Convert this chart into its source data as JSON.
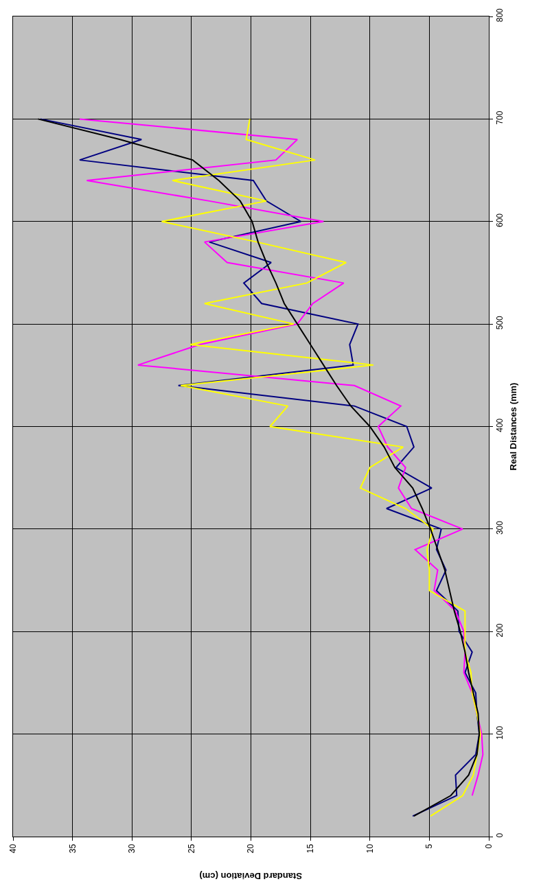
{
  "chart_data": {
    "type": "line",
    "xlabel": "Standard Deviation (cm)",
    "ylabel": "Real Distances (mm)",
    "series": [
      {
        "color": "#000080",
        "x": [
          6.4,
          2.7,
          2.8,
          1.1,
          0.8,
          1.0,
          1.1,
          2.0,
          1.4,
          2.5,
          2.6,
          4.4,
          3.6,
          4.4,
          4.0,
          8.6,
          4.8,
          7.8,
          6.3,
          6.9,
          11.3,
          26.1,
          11.4,
          11.7,
          11.0,
          19.1,
          20.6,
          18.3,
          23.5,
          15.8,
          18.7,
          19.8,
          34.4,
          29.2,
          37.7
        ],
        "values": [
          20,
          40,
          60,
          80,
          100,
          120,
          140,
          160,
          180,
          200,
          220,
          240,
          260,
          280,
          300,
          320,
          340,
          360,
          380,
          400,
          420,
          440,
          460,
          480,
          500,
          520,
          540,
          560,
          580,
          600,
          620,
          640,
          660,
          680,
          700
        ]
      },
      {
        "color": "#ff00ff",
        "x": [
          1.4,
          0.9,
          0.5,
          0.6,
          1.0,
          1.4,
          2.1,
          2.0,
          2.1,
          2.8,
          4.6,
          4.3,
          6.2,
          2.2,
          6.5,
          7.6,
          7.0,
          8.5,
          9.3,
          7.4,
          11.3,
          29.5,
          24.3,
          16.1,
          14.8,
          12.2,
          22.0,
          23.9,
          13.9,
          23.5,
          33.8,
          17.9,
          16.1,
          34.4
        ],
        "values": [
          40,
          60,
          80,
          100,
          120,
          140,
          160,
          180,
          200,
          220,
          240,
          260,
          280,
          300,
          320,
          340,
          360,
          380,
          400,
          420,
          440,
          460,
          480,
          500,
          520,
          540,
          560,
          580,
          600,
          620,
          640,
          660,
          680,
          700
        ]
      },
      {
        "color": "#ffff00",
        "x": [
          4.9,
          2.2,
          1.3,
          1.0,
          0.7,
          1.0,
          1.4,
          1.5,
          2.0,
          2.0,
          2.0,
          5.0,
          5.0,
          5.2,
          4.7,
          7.0,
          10.8,
          10.0,
          7.2,
          18.4,
          16.9,
          25.9,
          9.7,
          25.1,
          16.4,
          23.9,
          15.3,
          12.0,
          19.5,
          27.5,
          18.7,
          26.6,
          14.6,
          20.4,
          20.1
        ],
        "values": [
          20,
          40,
          60,
          80,
          100,
          120,
          140,
          160,
          180,
          200,
          220,
          240,
          260,
          280,
          300,
          320,
          340,
          360,
          380,
          400,
          420,
          440,
          460,
          480,
          500,
          520,
          540,
          560,
          580,
          600,
          620,
          640,
          660,
          680,
          700
        ]
      },
      {
        "color": "#000000",
        "x": [
          6.3,
          3.2,
          1.7,
          1.0,
          0.8,
          0.9,
          1.3,
          1.7,
          2.0,
          2.4,
          2.9,
          3.3,
          3.7,
          4.3,
          4.9,
          5.6,
          6.4,
          7.9,
          8.8,
          10.0,
          11.6,
          12.8,
          13.9,
          15.0,
          16.1,
          17.2,
          17.9,
          18.7,
          19.4,
          19.9,
          20.9,
          22.7,
          24.9,
          31.0,
          37.9
        ],
        "values": [
          20,
          40,
          60,
          80,
          100,
          120,
          140,
          160,
          180,
          200,
          220,
          240,
          260,
          280,
          300,
          320,
          340,
          360,
          380,
          400,
          420,
          440,
          460,
          480,
          500,
          520,
          540,
          560,
          580,
          600,
          620,
          640,
          660,
          680,
          700
        ]
      }
    ],
    "xlim": [
      40,
      0
    ],
    "xticks": [
      40,
      35,
      30,
      25,
      20,
      15,
      10,
      5,
      0
    ],
    "ylim": [
      0,
      800
    ],
    "yticks": [
      0,
      100,
      200,
      300,
      400,
      500,
      600,
      700,
      800
    ],
    "grid": true
  }
}
